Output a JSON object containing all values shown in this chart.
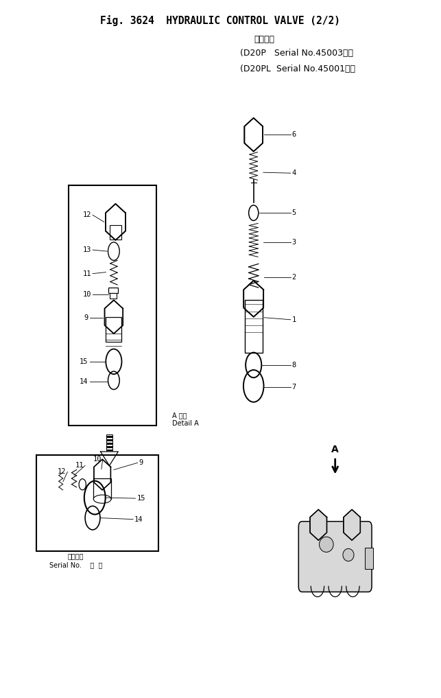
{
  "bg_color": "#ffffff",
  "title_line1": "Fig. 3624  HYDRAULIC CONTROL VALVE (2/2)",
  "title_line2": "適用号機",
  "title_line3": "(D20P   Serial No.45003～）",
  "title_line4": "(D20PL  Serial No.45001～）",
  "detail_label1": "A 隣図",
  "detail_label2": "Detail A",
  "serial_label1": "適用号機",
  "serial_label2": "Serial No.    ・  ～",
  "arrow_label": "A"
}
